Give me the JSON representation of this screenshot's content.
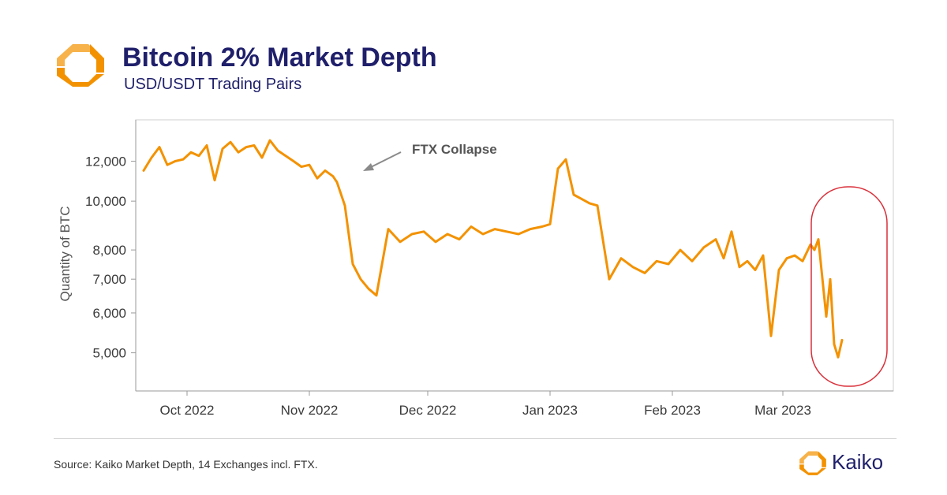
{
  "header": {
    "title": "Bitcoin 2% Market Depth",
    "subtitle": "USD/USDT Trading Pairs"
  },
  "footer": {
    "source": "Source: Kaiko Market Depth, 14 Exchanges incl. FTX.",
    "brand": "Kaiko"
  },
  "colors": {
    "line": "#f39200",
    "title": "#1f1f6b",
    "highlight": "#d9303a",
    "logo_orange": "#f39200",
    "logo_orange_light": "#f7b24a"
  },
  "chart_data": {
    "type": "line",
    "title": "Bitcoin 2% Market Depth",
    "subtitle": "USD/USDT Trading Pairs",
    "ylabel": "Quantity of BTC",
    "xlabel": "",
    "y_scale": "log",
    "ylim": [
      4200,
      14500
    ],
    "xlim": [
      "2022-09-18",
      "2023-03-29"
    ],
    "y_ticks": [
      5000,
      6000,
      7000,
      8000,
      10000,
      12000
    ],
    "y_tick_labels": [
      "5,000",
      "6,000",
      "7,000",
      "8,000",
      "10,000",
      "12,000"
    ],
    "x_ticks": [
      "2022-10-01",
      "2022-11-01",
      "2022-12-01",
      "2023-01-01",
      "2023-02-01",
      "2023-03-01"
    ],
    "x_tick_labels": [
      "Oct 2022",
      "Nov 2022",
      "Dec 2022",
      "Jan 2023",
      "Feb 2023",
      "Mar 2023"
    ],
    "grid": false,
    "legend": "none",
    "series": [
      {
        "x": [
          "2022-09-20",
          "2022-09-22",
          "2022-09-24",
          "2022-09-26",
          "2022-09-28",
          "2022-09-30",
          "2022-10-02",
          "2022-10-04",
          "2022-10-06",
          "2022-10-08",
          "2022-10-10",
          "2022-10-12",
          "2022-10-14",
          "2022-10-16",
          "2022-10-18",
          "2022-10-20",
          "2022-10-22",
          "2022-10-24",
          "2022-10-26",
          "2022-10-28",
          "2022-10-30",
          "2022-11-01",
          "2022-11-03",
          "2022-11-05",
          "2022-11-07",
          "2022-11-08",
          "2022-11-10",
          "2022-11-12",
          "2022-11-14",
          "2022-11-16",
          "2022-11-18",
          "2022-11-21",
          "2022-11-24",
          "2022-11-27",
          "2022-11-30",
          "2022-12-03",
          "2022-12-06",
          "2022-12-09",
          "2022-12-12",
          "2022-12-15",
          "2022-12-18",
          "2022-12-21",
          "2022-12-24",
          "2022-12-27",
          "2022-12-30",
          "2023-01-01",
          "2023-01-03",
          "2023-01-05",
          "2023-01-07",
          "2023-01-09",
          "2023-01-11",
          "2023-01-13",
          "2023-01-16",
          "2023-01-19",
          "2023-01-22",
          "2023-01-25",
          "2023-01-28",
          "2023-01-31",
          "2023-02-03",
          "2023-02-06",
          "2023-02-09",
          "2023-02-12",
          "2023-02-14",
          "2023-02-16",
          "2023-02-18",
          "2023-02-20",
          "2023-02-22",
          "2023-02-24",
          "2023-02-26",
          "2023-02-28",
          "2023-03-02",
          "2023-03-04",
          "2023-03-06",
          "2023-03-08",
          "2023-03-09",
          "2023-03-10",
          "2023-03-12",
          "2023-03-13",
          "2023-03-14",
          "2023-03-15",
          "2023-03-16"
        ],
        "values": [
          11500,
          12200,
          12800,
          11800,
          12000,
          12100,
          12500,
          12300,
          12900,
          11000,
          12700,
          13100,
          12500,
          12800,
          12900,
          12200,
          13200,
          12600,
          12300,
          12000,
          11700,
          11800,
          11100,
          11500,
          11200,
          10900,
          9800,
          7500,
          7000,
          6700,
          6500,
          8800,
          8300,
          8600,
          8700,
          8300,
          8600,
          8400,
          8900,
          8600,
          8800,
          8700,
          8600,
          8800,
          8900,
          9000,
          11600,
          12100,
          10300,
          10100,
          9900,
          9800,
          7000,
          7700,
          7400,
          7200,
          7600,
          7500,
          8000,
          7600,
          8100,
          8400,
          7700,
          8700,
          7400,
          7600,
          7300,
          7800,
          5400,
          7300,
          7700,
          7800,
          7600,
          8200,
          8000,
          8400,
          5900,
          7000,
          5200,
          4900,
          5300
        ]
      }
    ],
    "annotations": [
      {
        "text": "FTX Collapse",
        "target": [
          "2022-11-12",
          11500
        ]
      }
    ]
  }
}
